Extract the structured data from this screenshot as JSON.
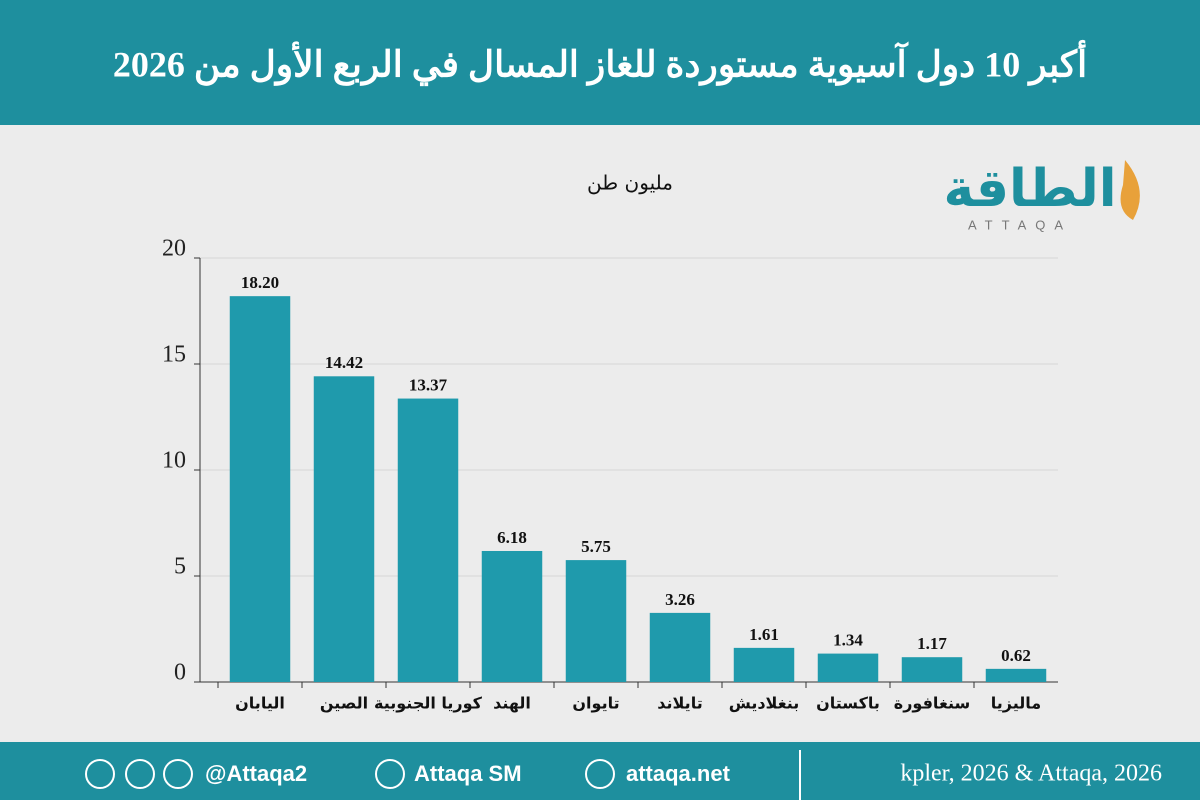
{
  "header": {
    "title": "أكبر 10 دول آسيوية مستوردة للغاز المسال في الربع الأول من 2026"
  },
  "logo": {
    "name": "الطاقة",
    "latin": "ATTAQA"
  },
  "chart_data": {
    "type": "bar",
    "y_label": "مليون طن",
    "categories": [
      "اليابان",
      "الصين",
      "كوريا الجنوبية",
      "الهند",
      "تايوان",
      "تايلاند",
      "بنغلاديش",
      "باكستان",
      "سنغافورة",
      "ماليزيا"
    ],
    "values": [
      18.2,
      14.42,
      13.37,
      6.18,
      5.75,
      3.26,
      1.61,
      1.34,
      1.17,
      0.62
    ],
    "value_labels": [
      "18.20",
      "14.42",
      "13.37",
      "6.18",
      "5.75",
      "3.26",
      "1.61",
      "1.34",
      "1.17",
      "0.62"
    ],
    "color": "#1f9aac",
    "ylim": [
      0,
      20
    ],
    "yticks": [
      0,
      5,
      10,
      15,
      20
    ],
    "grid": true
  },
  "footer": {
    "handle": "@Attaqa2",
    "youtube": "Attaqa SM",
    "website": "attaqa.net",
    "source": "kpler, 2026 & Attaqa, 2026"
  }
}
